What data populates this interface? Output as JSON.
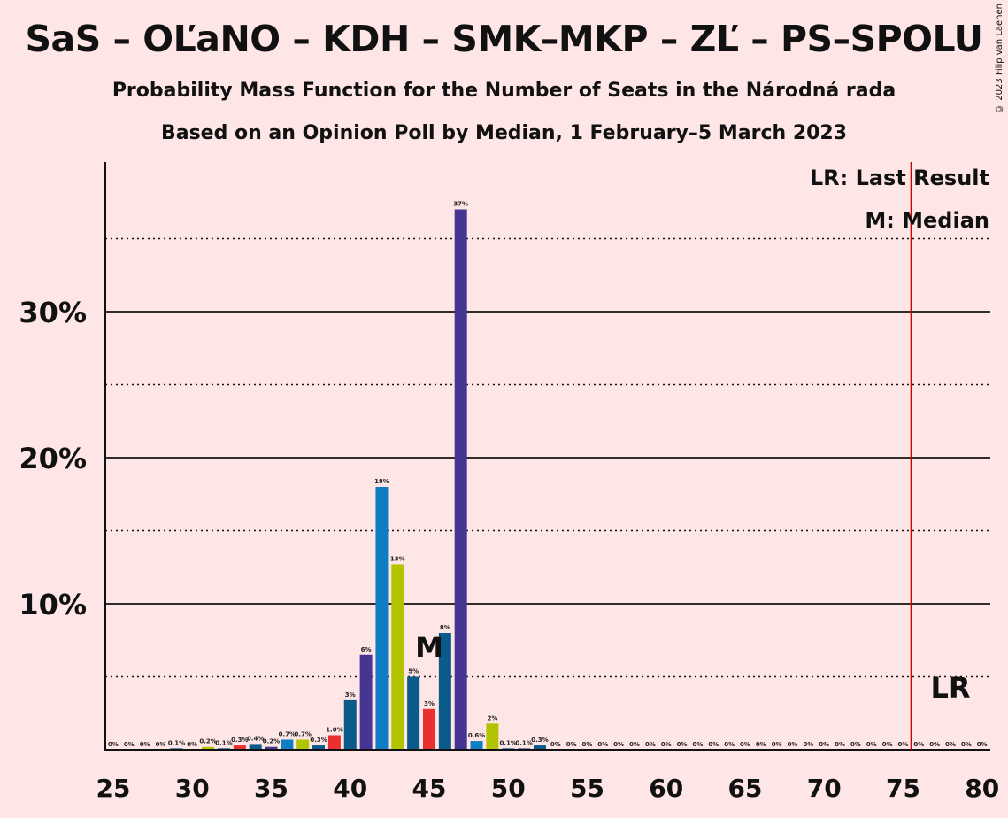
{
  "chart_data": {
    "type": "bar",
    "title": "SaS – OĽaNO – KDH – SMK–MKP – ZĽ – PS–SPOLU",
    "subtitle": "Probability Mass Function for the Number of Seats in the Národná rada",
    "subtitle2": "Based on an Opinion Poll by Median, 1 February–5 March 2023",
    "copyright": "© 2023 Filip van Laenen",
    "legend": {
      "lr": "LR: Last Result",
      "m": "M: Median",
      "placement": "top-right"
    },
    "xlabel": "",
    "ylabel": "",
    "xlim": [
      25,
      80
    ],
    "ylim": [
      0,
      40
    ],
    "x_ticks": [
      "25",
      "30",
      "35",
      "40",
      "45",
      "50",
      "55",
      "60",
      "65",
      "70",
      "75",
      "80"
    ],
    "y_ticks": [
      {
        "value": 10,
        "label": "10%"
      },
      {
        "value": 20,
        "label": "20%"
      },
      {
        "value": 30,
        "label": "30%"
      }
    ],
    "grid": {
      "solid": [
        10,
        20,
        30
      ],
      "dotted": [
        5,
        15,
        25,
        35
      ]
    },
    "median_seat": 45,
    "median_label": "M",
    "last_result_seat": 76,
    "last_result_label": "LR",
    "colors": {
      "blue": "#0A5A8C",
      "light_blue": "#0F7DC2",
      "yellow_green": "#B2C400",
      "red": "#E8302E",
      "purple": "#453791",
      "lr_line": "#CC0000",
      "background": "#FFE6E6"
    },
    "bars": [
      {
        "seat": 25,
        "value": 0,
        "label": "0%",
        "color": "blue"
      },
      {
        "seat": 26,
        "value": 0,
        "label": "0%",
        "color": "blue"
      },
      {
        "seat": 27,
        "value": 0,
        "label": "0%",
        "color": "blue"
      },
      {
        "seat": 28,
        "value": 0,
        "label": "0%",
        "color": "blue"
      },
      {
        "seat": 29,
        "value": 0.1,
        "label": "0.1%",
        "color": "blue"
      },
      {
        "seat": 30,
        "value": 0,
        "label": "0%",
        "color": "blue"
      },
      {
        "seat": 31,
        "value": 0.2,
        "label": "0.2%",
        "color": "yellow_green"
      },
      {
        "seat": 32,
        "value": 0.1,
        "label": "0.1%",
        "color": "blue"
      },
      {
        "seat": 33,
        "value": 0.3,
        "label": "0.3%",
        "color": "red"
      },
      {
        "seat": 34,
        "value": 0.4,
        "label": "0.4%",
        "color": "blue"
      },
      {
        "seat": 35,
        "value": 0.2,
        "label": "0.2%",
        "color": "purple"
      },
      {
        "seat": 36,
        "value": 0.7,
        "label": "0.7%",
        "color": "light_blue"
      },
      {
        "seat": 37,
        "value": 0.7,
        "label": "0.7%",
        "color": "yellow_green"
      },
      {
        "seat": 38,
        "value": 0.3,
        "label": "0.3%",
        "color": "blue"
      },
      {
        "seat": 39,
        "value": 1.0,
        "label": "1.0%",
        "color": "red"
      },
      {
        "seat": 40,
        "value": 3.4,
        "label": "3%",
        "color": "blue"
      },
      {
        "seat": 41,
        "value": 6.5,
        "label": "6%",
        "color": "purple"
      },
      {
        "seat": 42,
        "value": 18,
        "label": "18%",
        "color": "light_blue"
      },
      {
        "seat": 43,
        "value": 12.7,
        "label": "13%",
        "color": "yellow_green"
      },
      {
        "seat": 44,
        "value": 5,
        "label": "5%",
        "color": "blue"
      },
      {
        "seat": 45,
        "value": 2.8,
        "label": "3%",
        "color": "red"
      },
      {
        "seat": 46,
        "value": 8,
        "label": "8%",
        "color": "blue"
      },
      {
        "seat": 47,
        "value": 37,
        "label": "37%",
        "color": "purple"
      },
      {
        "seat": 48,
        "value": 0.6,
        "label": "0.6%",
        "color": "light_blue"
      },
      {
        "seat": 49,
        "value": 1.8,
        "label": "2%",
        "color": "yellow_green"
      },
      {
        "seat": 50,
        "value": 0.1,
        "label": "0.1%",
        "color": "blue"
      },
      {
        "seat": 51,
        "value": 0.1,
        "label": "0.1%",
        "color": "purple"
      },
      {
        "seat": 52,
        "value": 0.3,
        "label": "0.3%",
        "color": "blue"
      },
      {
        "seat": 53,
        "value": 0,
        "label": "0%",
        "color": "blue"
      },
      {
        "seat": 54,
        "value": 0,
        "label": "0%",
        "color": "blue"
      },
      {
        "seat": 55,
        "value": 0,
        "label": "0%",
        "color": "blue"
      },
      {
        "seat": 56,
        "value": 0,
        "label": "0%",
        "color": "blue"
      },
      {
        "seat": 57,
        "value": 0,
        "label": "0%",
        "color": "blue"
      },
      {
        "seat": 58,
        "value": 0,
        "label": "0%",
        "color": "blue"
      },
      {
        "seat": 59,
        "value": 0,
        "label": "0%",
        "color": "blue"
      },
      {
        "seat": 60,
        "value": 0,
        "label": "0%",
        "color": "blue"
      },
      {
        "seat": 61,
        "value": 0,
        "label": "0%",
        "color": "blue"
      },
      {
        "seat": 62,
        "value": 0,
        "label": "0%",
        "color": "blue"
      },
      {
        "seat": 63,
        "value": 0,
        "label": "0%",
        "color": "blue"
      },
      {
        "seat": 64,
        "value": 0,
        "label": "0%",
        "color": "blue"
      },
      {
        "seat": 65,
        "value": 0,
        "label": "0%",
        "color": "blue"
      },
      {
        "seat": 66,
        "value": 0,
        "label": "0%",
        "color": "blue"
      },
      {
        "seat": 67,
        "value": 0,
        "label": "0%",
        "color": "blue"
      },
      {
        "seat": 68,
        "value": 0,
        "label": "0%",
        "color": "blue"
      },
      {
        "seat": 69,
        "value": 0,
        "label": "0%",
        "color": "blue"
      },
      {
        "seat": 70,
        "value": 0,
        "label": "0%",
        "color": "blue"
      },
      {
        "seat": 71,
        "value": 0,
        "label": "0%",
        "color": "blue"
      },
      {
        "seat": 72,
        "value": 0,
        "label": "0%",
        "color": "blue"
      },
      {
        "seat": 73,
        "value": 0,
        "label": "0%",
        "color": "blue"
      },
      {
        "seat": 74,
        "value": 0,
        "label": "0%",
        "color": "blue"
      },
      {
        "seat": 75,
        "value": 0,
        "label": "0%",
        "color": "blue"
      },
      {
        "seat": 76,
        "value": 0,
        "label": "0%",
        "color": "blue"
      },
      {
        "seat": 77,
        "value": 0,
        "label": "0%",
        "color": "blue"
      },
      {
        "seat": 78,
        "value": 0,
        "label": "0%",
        "color": "blue"
      },
      {
        "seat": 79,
        "value": 0,
        "label": "0%",
        "color": "blue"
      },
      {
        "seat": 80,
        "value": 0,
        "label": "0%",
        "color": "blue"
      }
    ]
  }
}
